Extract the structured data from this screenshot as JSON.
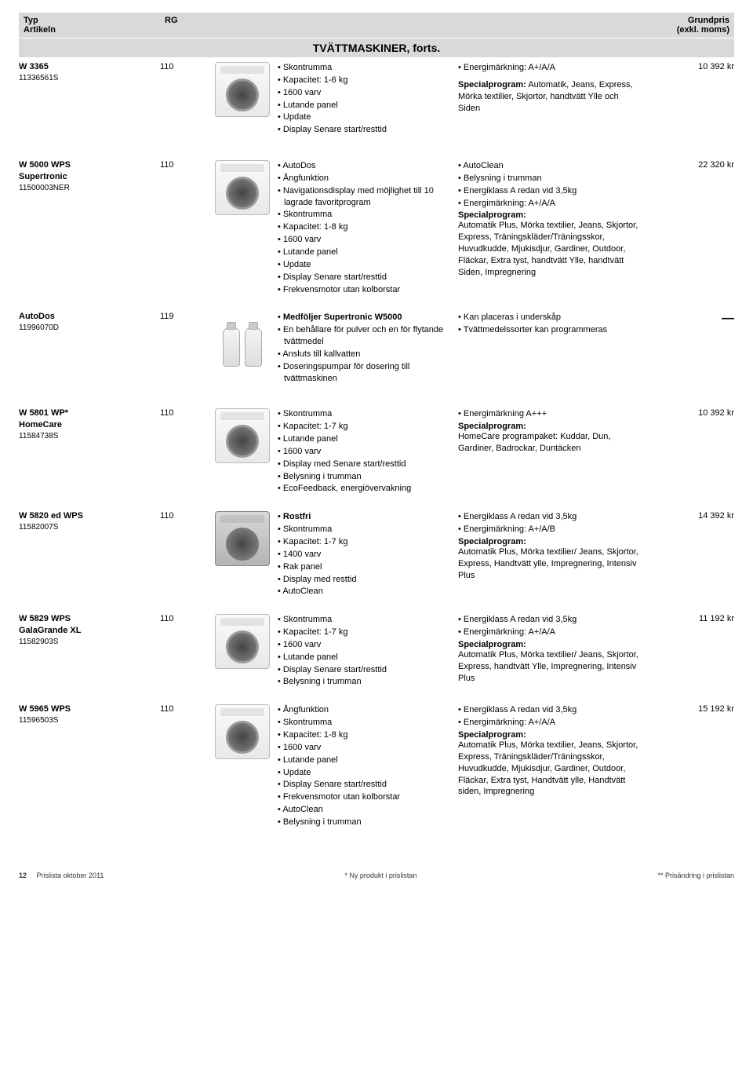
{
  "header": {
    "col1a": "Typ",
    "col1b": "Artikeln",
    "col2": "RG",
    "col5a": "Grundpris",
    "col5b": "(exkl. moms)"
  },
  "section_title": "TVÄTTMASKINER, forts.",
  "products": [
    {
      "name": "W 3365",
      "sub": "",
      "artnr": "11336561S",
      "rg": "110",
      "image": "washer-white",
      "feat1": [
        "Skontrumma",
        "Kapacitet: 1-6 kg",
        "1600 varv",
        "Lutande panel",
        "Update",
        "Display Senare start/resttid"
      ],
      "feat2": [
        "Energimärkning: A+/A/A",
        "",
        "<b>Specialprogram:</b> Automatik, Jeans, Express, Mörka textilier, Skjortor, handtvätt Ylle och Siden"
      ],
      "price": "10 392 kr"
    },
    {
      "name": "W 5000 WPS",
      "sub": "Supertronic",
      "artnr": "11500003NER",
      "rg": "110",
      "image": "washer-white",
      "feat1": [
        "AutoDos",
        "Ångfunktion",
        "Navigationsdisplay med möjlighet till 10 lagrade favoritprogram",
        "Skontrumma",
        "Kapacitet: 1-8 kg",
        "1600 varv",
        "Lutande panel",
        "Update",
        "Display Senare start/resttid",
        "Frekvensmotor utan kolborstar"
      ],
      "feat2": [
        "AutoClean",
        "Belysning i trumman",
        "Energiklass A redan vid 3,5kg",
        "Energimärkning: A+/A/A",
        "<b>Specialprogram:</b>",
        "Automatik Plus, Mörka textilier, Jeans, Skjortor, Express, Träningskläder/Träningsskor, Huvudkudde, Mjukisdjur, Gardiner, Outdoor, Fläckar, Extra tyst, handtvätt Ylle, handtvätt Siden, Impregnering"
      ],
      "price": "22 320 kr"
    },
    {
      "name": "AutoDos",
      "sub": "",
      "artnr": "11996070D",
      "rg": "119",
      "image": "bottles",
      "feat1": [
        "<b>Medföljer Supertronic W5000</b>",
        "En behållare för pulver och en för flytande tvättmedel",
        "Ansluts till kallvatten",
        "Doseringspumpar för dosering till tvättmaskinen"
      ],
      "feat2": [
        "Kan placeras i underskåp",
        "Tvättmedelssorter kan programmeras"
      ],
      "price": "dash"
    },
    {
      "name": "W 5801 WP*",
      "sub": "HomeCare",
      "artnr": "11584738S",
      "rg": "110",
      "image": "washer-white",
      "feat1": [
        "Skontrumma",
        "Kapacitet: 1-7 kg",
        "Lutande panel",
        "1600 varv",
        "Display med Senare start/resttid",
        "Belysning i trumman",
        "EcoFeedback, energiövervakning"
      ],
      "feat2": [
        "Energimärkning A+++",
        "<b>Specialprogram:</b>",
        "HomeCare programpaket: Kuddar, Dun, Gardiner, Badrockar, Duntäcken"
      ],
      "price": "10 392 kr"
    },
    {
      "name": "W 5820 ed WPS",
      "sub": "",
      "artnr": "11582007S",
      "rg": "110",
      "image": "washer-steel",
      "feat1": [
        "<b>Rostfri</b>",
        "Skontrumma",
        "Kapacitet: 1-7 kg",
        "1400 varv",
        "Rak panel",
        "Display med resttid",
        "AutoClean"
      ],
      "feat2": [
        "Energiklass A redan vid 3,5kg",
        "Energimärkning: A+/A/B",
        "<b>Specialprogram:</b>",
        "Automatik Plus, Mörka textilier/ Jeans, Skjortor, Express, Handtvätt ylle, Impregnering, Intensiv Plus"
      ],
      "price": "14 392 kr"
    },
    {
      "name": "W 5829 WPS",
      "sub": "GalaGrande XL",
      "artnr": "11582903S",
      "rg": "110",
      "image": "washer-white",
      "feat1": [
        "Skontrumma",
        "Kapacitet: 1-7 kg",
        "1600 varv",
        "Lutande panel",
        "Display Senare start/resttid",
        "Belysning i trumman"
      ],
      "feat2": [
        "Energiklass A redan vid 3,5kg",
        "Energimärkning: A+/A/A",
        "<b>Specialprogram:</b>",
        "Automatik Plus, Mörka textilier/ Jeans, Skjortor, Express, handtvätt Ylle, Impregnering, Intensiv Plus"
      ],
      "price": "11 192 kr"
    },
    {
      "name": "W 5965 WPS",
      "sub": "",
      "artnr": "11596503S",
      "rg": "110",
      "image": "washer-white",
      "feat1": [
        "Ångfunktion",
        "Skontrumma",
        "Kapacitet: 1-8 kg",
        "1600 varv",
        "Lutande panel",
        "Update",
        "Display Senare start/resttid",
        "Frekvensmotor utan kolborstar",
        "AutoClean",
        "Belysning i trumman"
      ],
      "feat2": [
        "Energiklass A redan vid 3,5kg",
        "Energimärkning: A+/A/A",
        "<b>Specialprogram:</b>",
        "Automatik Plus, Mörka textilier, Jeans, Skjortor, Express, Träningskläder/Träningsskor, Huvudkudde, Mjukisdjur, Gardiner, Outdoor, Fläckar, Extra tyst, Handtvätt ylle, Handtvätt siden, Impregnering"
      ],
      "price": "15 192 kr"
    }
  ],
  "footer": {
    "page": "12",
    "left": "Prislista oktober 2011",
    "mid": "* Ny produkt i prislistan",
    "right": "** Prisändring i prislistan"
  }
}
